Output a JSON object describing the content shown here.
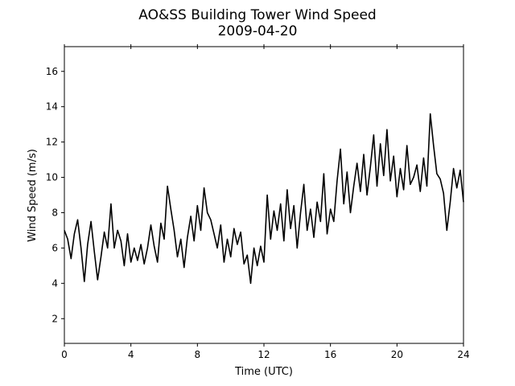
{
  "chart_data": {
    "type": "line",
    "title": "AO&SS Building Tower Wind Speed",
    "subtitle": "2009-04-20",
    "xlabel": "Time (UTC)",
    "ylabel": "Wind Speed (m/s)",
    "xlim": [
      0,
      24
    ],
    "ylim": [
      0.6,
      17.4
    ],
    "xticks": [
      0,
      4,
      8,
      12,
      16,
      20,
      24
    ],
    "yticks": [
      2,
      4,
      6,
      8,
      10,
      12,
      14,
      16
    ],
    "grid": false,
    "legend": "none",
    "line_color": "#000000",
    "series": [
      {
        "x": [
          0.0,
          0.2,
          0.4,
          0.6,
          0.8,
          1.0,
          1.2,
          1.4,
          1.6,
          1.8,
          2.0,
          2.2,
          2.4,
          2.6,
          2.8,
          3.0,
          3.2,
          3.4,
          3.6,
          3.8,
          4.0,
          4.2,
          4.4,
          4.6,
          4.8,
          5.0,
          5.2,
          5.4,
          5.6,
          5.8,
          6.0,
          6.2,
          6.4,
          6.6,
          6.8,
          7.0,
          7.2,
          7.4,
          7.6,
          7.8,
          8.0,
          8.2,
          8.4,
          8.6,
          8.8,
          9.0,
          9.2,
          9.4,
          9.6,
          9.8,
          10.0,
          10.2,
          10.4,
          10.6,
          10.8,
          11.0,
          11.2,
          11.4,
          11.6,
          11.8,
          12.0,
          12.2,
          12.4,
          12.6,
          12.8,
          13.0,
          13.2,
          13.4,
          13.6,
          13.8,
          14.0,
          14.2,
          14.4,
          14.6,
          14.8,
          15.0,
          15.2,
          15.4,
          15.6,
          15.8,
          16.0,
          16.2,
          16.4,
          16.6,
          16.8,
          17.0,
          17.2,
          17.4,
          17.6,
          17.8,
          18.0,
          18.2,
          18.4,
          18.6,
          18.8,
          19.0,
          19.2,
          19.4,
          19.6,
          19.8,
          20.0,
          20.2,
          20.4,
          20.6,
          20.8,
          21.0,
          21.2,
          21.4,
          21.6,
          21.8,
          22.0,
          22.2,
          22.4,
          22.6,
          22.8,
          23.0,
          23.2,
          23.4,
          23.6,
          23.8,
          24.0
        ],
        "y": [
          7.0,
          6.5,
          5.4,
          6.8,
          7.6,
          6.0,
          4.1,
          6.2,
          7.5,
          5.8,
          4.2,
          5.5,
          6.9,
          6.0,
          8.5,
          6.0,
          7.0,
          6.4,
          5.0,
          6.8,
          5.2,
          6.0,
          5.3,
          6.2,
          5.1,
          6.0,
          7.3,
          6.1,
          5.2,
          7.4,
          6.5,
          9.5,
          8.2,
          7.0,
          5.5,
          6.5,
          4.9,
          6.6,
          7.8,
          6.4,
          8.4,
          7.0,
          9.4,
          8.0,
          7.6,
          6.8,
          6.0,
          7.3,
          5.2,
          6.5,
          5.5,
          7.1,
          6.2,
          6.9,
          5.1,
          5.6,
          4.0,
          6.0,
          5.0,
          6.1,
          5.2,
          9.0,
          6.5,
          8.1,
          7.0,
          8.5,
          6.4,
          9.3,
          7.1,
          8.4,
          6.0,
          8.0,
          9.6,
          7.0,
          8.2,
          6.6,
          8.6,
          7.5,
          10.2,
          6.8,
          8.2,
          7.5,
          9.8,
          11.6,
          8.5,
          10.3,
          8.0,
          9.5,
          10.8,
          9.2,
          11.3,
          9.0,
          10.6,
          12.4,
          9.5,
          11.9,
          10.1,
          12.7,
          9.8,
          11.2,
          8.9,
          10.5,
          9.3,
          11.8,
          9.6,
          10.0,
          10.7,
          9.2,
          11.1,
          9.5,
          13.6,
          11.8,
          10.2,
          9.9,
          9.1,
          7.0,
          8.6,
          10.5,
          9.4,
          10.4,
          8.6
        ]
      }
    ]
  }
}
